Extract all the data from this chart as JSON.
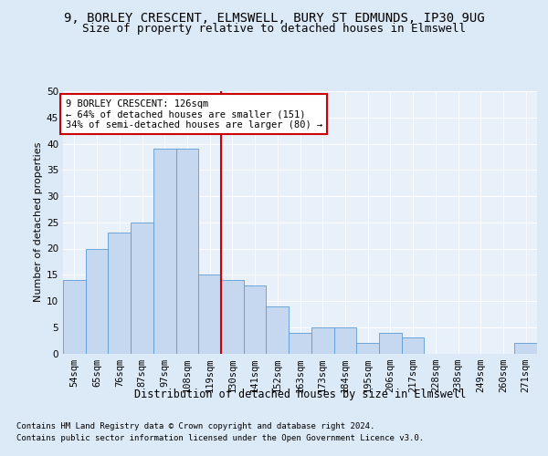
{
  "title_line1": "9, BORLEY CRESCENT, ELMSWELL, BURY ST EDMUNDS, IP30 9UG",
  "title_line2": "Size of property relative to detached houses in Elmswell",
  "xlabel": "Distribution of detached houses by size in Elmswell",
  "ylabel": "Number of detached properties",
  "categories": [
    "54sqm",
    "65sqm",
    "76sqm",
    "87sqm",
    "97sqm",
    "108sqm",
    "119sqm",
    "130sqm",
    "141sqm",
    "152sqm",
    "163sqm",
    "173sqm",
    "184sqm",
    "195sqm",
    "206sqm",
    "217sqm",
    "228sqm",
    "238sqm",
    "249sqm",
    "260sqm",
    "271sqm"
  ],
  "values": [
    14,
    20,
    23,
    25,
    39,
    39,
    15,
    14,
    13,
    9,
    4,
    5,
    5,
    2,
    4,
    3,
    0,
    0,
    0,
    0,
    2
  ],
  "bar_color": "#c5d8f0",
  "bar_edge_color": "#5b9bd5",
  "annotation_line1": "9 BORLEY CRESCENT: 126sqm",
  "annotation_line2": "← 64% of detached houses are smaller (151)",
  "annotation_line3": "34% of semi-detached houses are larger (80) →",
  "annotation_box_color": "#ffffff",
  "annotation_box_edge": "#cc0000",
  "vline_color": "#cc0000",
  "vline_x_index": 6.5,
  "ylim": [
    0,
    50
  ],
  "yticks": [
    0,
    5,
    10,
    15,
    20,
    25,
    30,
    35,
    40,
    45,
    50
  ],
  "bg_color": "#dce9f7",
  "plot_bg_color": "#e8f0fa",
  "footer_line1": "Contains HM Land Registry data © Crown copyright and database right 2024.",
  "footer_line2": "Contains public sector information licensed under the Open Government Licence v3.0.",
  "title_fontsize": 10,
  "subtitle_fontsize": 9,
  "axis_label_fontsize": 8,
  "tick_fontsize": 7.5,
  "annotation_fontsize": 7.5,
  "xlabel_fontsize": 8.5,
  "footer_fontsize": 6.5
}
